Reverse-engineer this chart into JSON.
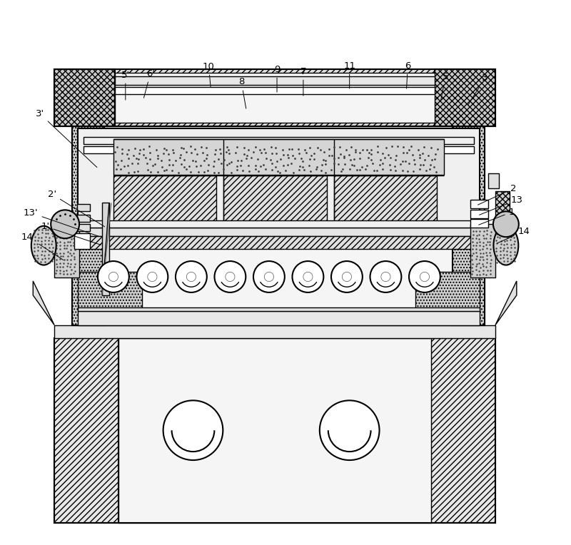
{
  "bg_color": "#ffffff",
  "fig_w": 8.0,
  "fig_h": 7.64,
  "dpi": 100
}
